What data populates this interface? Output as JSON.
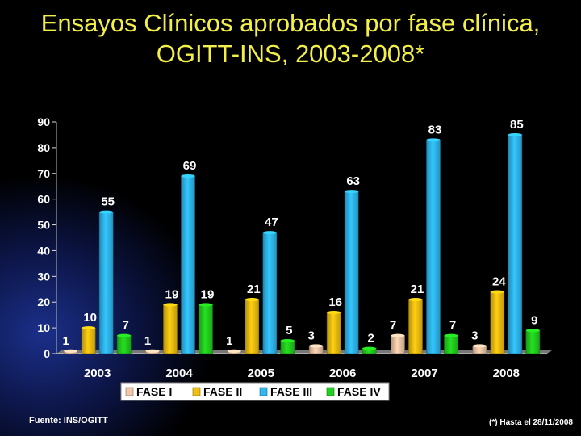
{
  "title_line1": "Ensayos Clínicos aprobados por fase  clínica,",
  "title_line2": "OGITT-INS, 2003-2008*",
  "source": "Fuente: INS/OGITT",
  "note": "(*) Hasta el 28/11/2008",
  "colors": {
    "title": "#f2ee4a",
    "fase_i": "#f1c7a8",
    "fase_ii": "#f0c010",
    "fase_iii": "#2fb8f0",
    "fase_iv": "#22d01e"
  },
  "chart_data": {
    "type": "bar",
    "title": "Ensayos Clínicos aprobados por fase  clínica, OGITT-INS, 2003-2008*",
    "xlabel": "",
    "ylabel": "",
    "categories": [
      "2003",
      "2004",
      "2005",
      "2006",
      "2007",
      "2008"
    ],
    "series": [
      {
        "name": "FASE I",
        "values": [
          1,
          1,
          1,
          3,
          7,
          3
        ]
      },
      {
        "name": "FASE II",
        "values": [
          10,
          19,
          21,
          16,
          21,
          24
        ]
      },
      {
        "name": "FASE III",
        "values": [
          55,
          69,
          47,
          63,
          83,
          85
        ]
      },
      {
        "name": "FASE IV",
        "values": [
          7,
          19,
          5,
          2,
          7,
          9
        ]
      }
    ],
    "ylim": [
      0,
      90
    ],
    "yticks": [
      0,
      10,
      20,
      30,
      40,
      50,
      60,
      70,
      80,
      90
    ],
    "legend_position": "bottom",
    "grid": false
  }
}
